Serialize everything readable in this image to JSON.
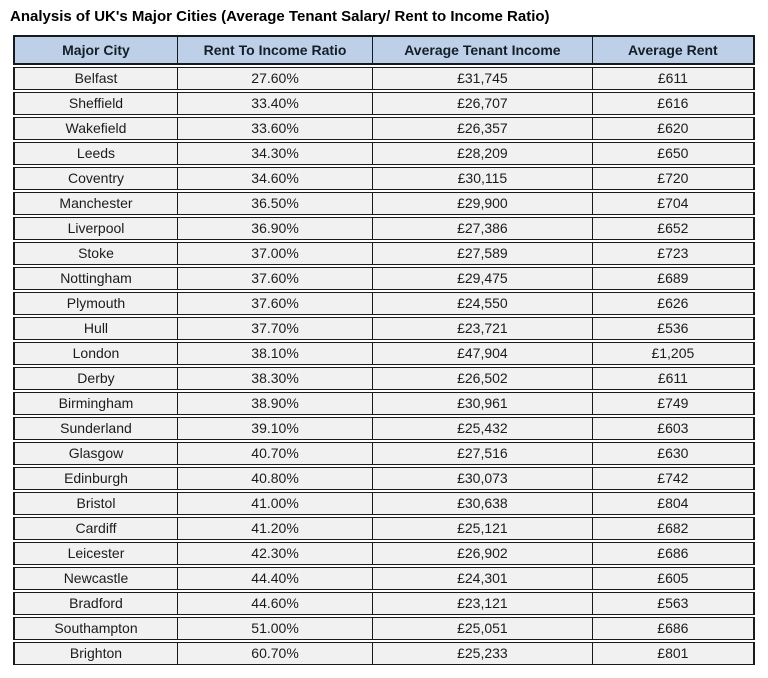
{
  "page_title": "Analysis of UK's Major Cities (Average Tenant Salary/ Rent to Income Ratio)",
  "chart_data": {
    "type": "table",
    "title": "Analysis of UK's Major Cities (Average Tenant Salary/ Rent to Income Ratio)",
    "headers": [
      "Major City",
      "Rent To Income Ratio",
      "Average Tenant Income",
      "Average Rent"
    ],
    "rows": [
      [
        "Belfast",
        "27.60%",
        "£31,745",
        "£611"
      ],
      [
        "Sheffield",
        "33.40%",
        "£26,707",
        "£616"
      ],
      [
        "Wakefield",
        "33.60%",
        "£26,357",
        "£620"
      ],
      [
        "Leeds",
        "34.30%",
        "£28,209",
        "£650"
      ],
      [
        "Coventry",
        "34.60%",
        "£30,115",
        "£720"
      ],
      [
        "Manchester",
        "36.50%",
        "£29,900",
        "£704"
      ],
      [
        "Liverpool",
        "36.90%",
        "£27,386",
        "£652"
      ],
      [
        "Stoke",
        "37.00%",
        "£27,589",
        "£723"
      ],
      [
        "Nottingham",
        "37.60%",
        "£29,475",
        "£689"
      ],
      [
        "Plymouth",
        "37.60%",
        "£24,550",
        "£626"
      ],
      [
        "Hull",
        "37.70%",
        "£23,721",
        "£536"
      ],
      [
        "London",
        "38.10%",
        "£47,904",
        "£1,205"
      ],
      [
        "Derby",
        "38.30%",
        "£26,502",
        "£611"
      ],
      [
        "Birmingham",
        "38.90%",
        "£30,961",
        "£749"
      ],
      [
        "Sunderland",
        "39.10%",
        "£25,432",
        "£603"
      ],
      [
        "Glasgow",
        "40.70%",
        "£27,516",
        "£630"
      ],
      [
        "Edinburgh",
        "40.80%",
        "£30,073",
        "£742"
      ],
      [
        "Bristol",
        "41.00%",
        "£30,638",
        "£804"
      ],
      [
        "Cardiff",
        "41.20%",
        "£25,121",
        "£682"
      ],
      [
        "Leicester",
        "42.30%",
        "£26,902",
        "£686"
      ],
      [
        "Newcastle",
        "44.40%",
        "£24,301",
        "£605"
      ],
      [
        "Bradford",
        "44.60%",
        "£23,121",
        "£563"
      ],
      [
        "Southampton",
        "51.00%",
        "£25,051",
        "£686"
      ],
      [
        "Brighton",
        "60.70%",
        "£25,233",
        "£801"
      ]
    ]
  },
  "colors": {
    "header_bg": "#bdd0e8",
    "header_text": "#141e29",
    "header_border": "#141a22",
    "row_bg": "#f1f1f1",
    "body_text": "#1b1b1b",
    "border_dark": "#1a1a1a",
    "page_bg": "#ffffff"
  }
}
